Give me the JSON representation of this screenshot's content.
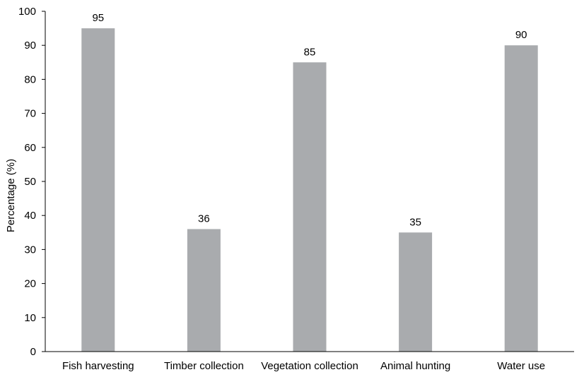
{
  "chart_data": {
    "type": "bar",
    "title": "",
    "xlabel": "",
    "ylabel": "Percentage (%)",
    "categories": [
      "Fish harvesting",
      "Timber collection",
      "Vegetation collection",
      "Animal hunting",
      "Water use"
    ],
    "values": [
      95,
      36,
      85,
      35,
      90
    ],
    "data_labels": [
      "95",
      "36",
      "85",
      "35",
      "90"
    ],
    "ylim": [
      0,
      100
    ],
    "yticks": [
      "0",
      "10",
      "20",
      "30",
      "40",
      "50",
      "60",
      "70",
      "80",
      "90",
      "100"
    ],
    "grid": false,
    "legend": "none",
    "bar_color": "#a9abae",
    "axis_color": "#000000"
  }
}
